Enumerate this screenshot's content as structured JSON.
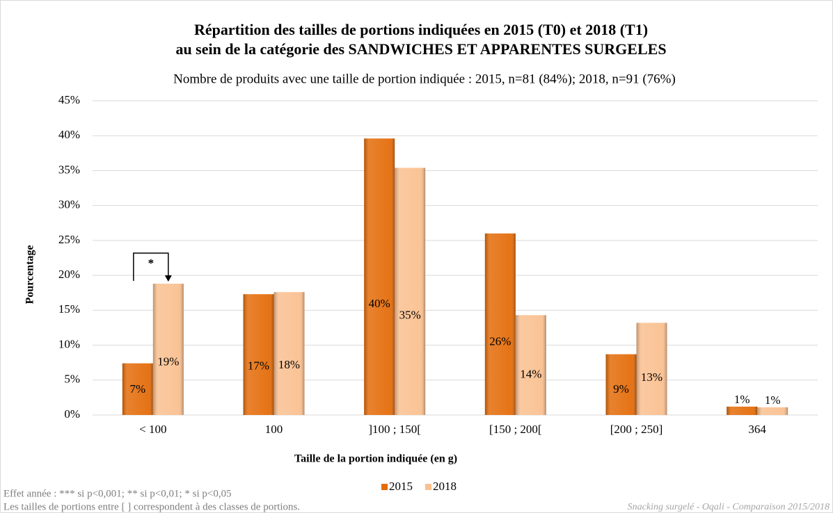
{
  "chart_data": {
    "type": "bar",
    "title": [
      "Répartition des tailles de portions indiquées en 2015 (T0) et 2018 (T1)",
      "au sein de la catégorie des SANDWICHES ET APPARENTES SURGELES"
    ],
    "subtitle": "Nombre de produits avec une taille de portion indiquée : 2015, n=81 (84%); 2018, n=91 (76%)",
    "xlabel": "Taille de la portion indiquée (en g)",
    "ylabel": "Pourcentage",
    "categories": [
      "< 100",
      "100",
      "]100 ; 150[",
      "[150 ; 200[",
      "[200 ; 250]",
      "364"
    ],
    "series": [
      {
        "name": "2015",
        "color": "#e46c0a",
        "values": [
          7.4,
          17.3,
          39.6,
          26.0,
          8.7,
          1.2
        ],
        "value_labels": [
          "7%",
          "17%",
          "40%",
          "26%",
          "9%",
          "1%"
        ]
      },
      {
        "name": "2018",
        "color": "#fac090",
        "values": [
          18.8,
          17.6,
          35.4,
          14.3,
          13.2,
          1.1
        ],
        "value_labels": [
          "19%",
          "18%",
          "35%",
          "14%",
          "13%",
          "1%"
        ]
      }
    ],
    "ylim": [
      0,
      45
    ],
    "yticks": [
      {
        "value": 0,
        "label": "0%"
      },
      {
        "value": 5,
        "label": "5%"
      },
      {
        "value": 10,
        "label": "10%"
      },
      {
        "value": 15,
        "label": "15%"
      },
      {
        "value": 20,
        "label": "20%"
      },
      {
        "value": 25,
        "label": "25%"
      },
      {
        "value": 30,
        "label": "30%"
      },
      {
        "value": 35,
        "label": "35%"
      },
      {
        "value": 40,
        "label": "40%"
      },
      {
        "value": 45,
        "label": "45%"
      }
    ],
    "grid": true,
    "legend": "bottom",
    "annotations": [
      "*"
    ],
    "notes": [
      "Effet année : *** si p<0,001; ** si p<0,01; * si p<0,05",
      "Les tailles de portions entre [ ] correspondent à des classes de portions."
    ],
    "source": "Snacking surgelé - Oqali - Comparaison 2015/2018"
  }
}
